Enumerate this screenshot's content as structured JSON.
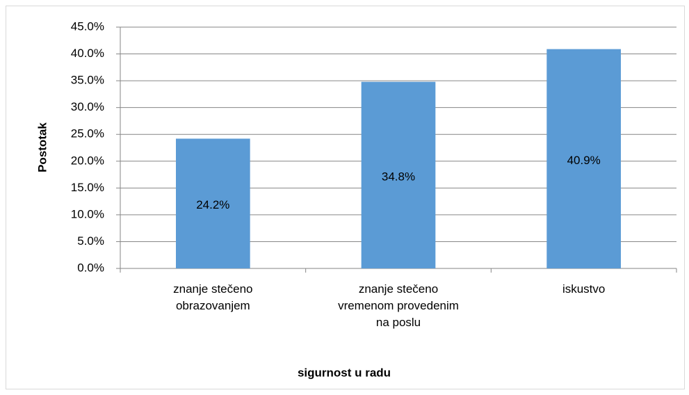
{
  "chart_data": {
    "type": "bar",
    "ylabel": "Postotak",
    "xlabel": "sigurnost u radu",
    "categories": [
      "znanje stečeno obrazovanjem",
      "znanje stečeno vremenom provedenim na poslu",
      "iskustvo"
    ],
    "values": [
      24.2,
      34.8,
      40.9
    ],
    "value_labels": [
      "24.2%",
      "34.8%",
      "40.9%"
    ],
    "color": "#5b9bd5",
    "ylim": [
      0,
      45
    ],
    "yticks": [
      {
        "value": 0,
        "label": "0.0%"
      },
      {
        "value": 5,
        "label": "5.0%"
      },
      {
        "value": 10,
        "label": "10.0%"
      },
      {
        "value": 15,
        "label": "15.0%"
      },
      {
        "value": 20,
        "label": "20.0%"
      },
      {
        "value": 25,
        "label": "25.0%"
      },
      {
        "value": 30,
        "label": "30.0%"
      },
      {
        "value": 35,
        "label": "35.0%"
      },
      {
        "value": 40,
        "label": "40.0%"
      },
      {
        "value": 45,
        "label": "45.0%"
      }
    ],
    "grid": true
  }
}
